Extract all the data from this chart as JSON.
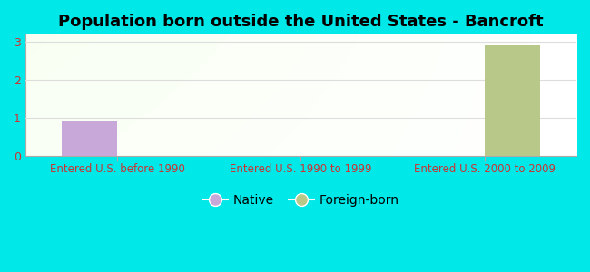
{
  "title": "Population born outside the United States - Bancroft",
  "categories": [
    "Entered U.S. before 1990",
    "Entered U.S. 1990 to 1999",
    "Entered U.S. 2000 to 2009"
  ],
  "native_values": [
    0.9,
    0,
    0
  ],
  "foreign_values": [
    0,
    0,
    2.9
  ],
  "native_color": "#c8a8d8",
  "foreign_color": "#b8c888",
  "background_color": "#00e8e8",
  "yticks": [
    0,
    1,
    2,
    3
  ],
  "ylim": [
    0,
    3.2
  ],
  "bar_width": 0.3,
  "title_fontsize": 13,
  "tick_label_color": "#cc3333",
  "legend_labels": [
    "Native",
    "Foreign-born"
  ],
  "grid_color": "#dddddd",
  "plot_bg_colors": [
    "#c8e8c8",
    "#e8f8f0",
    "#f0fff8",
    "#ffffff"
  ],
  "xlim": [
    -0.5,
    2.5
  ]
}
